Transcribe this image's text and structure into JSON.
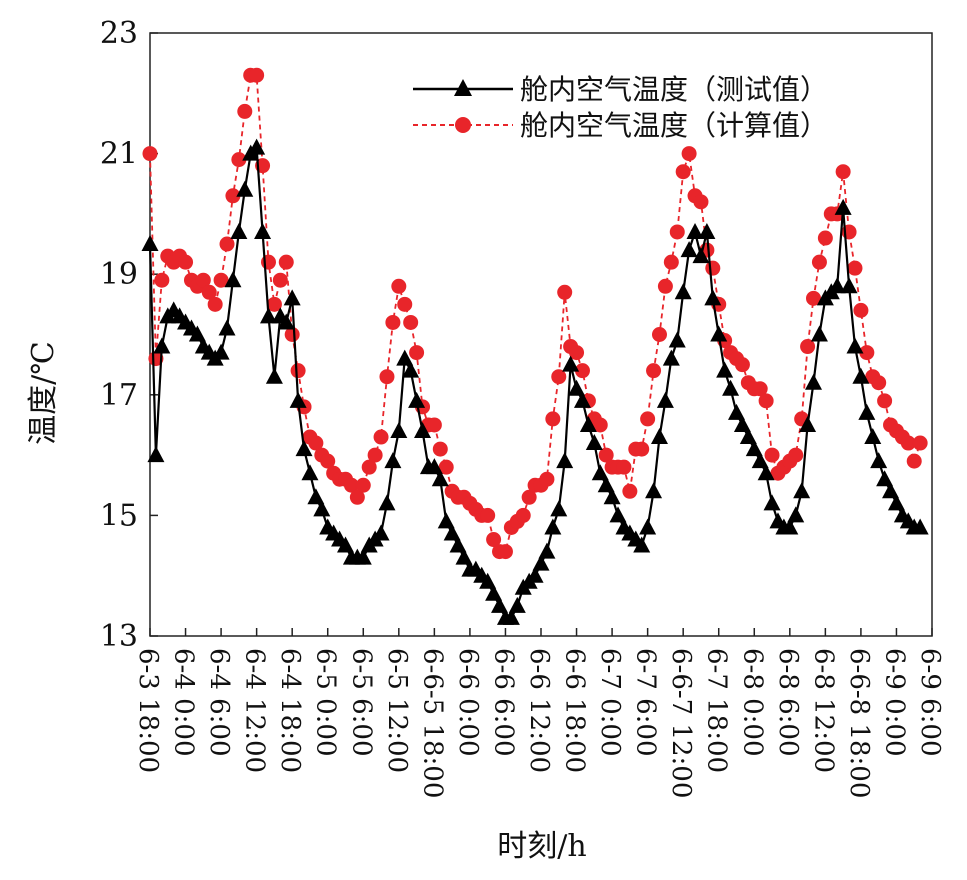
{
  "chart_data": {
    "type": "line",
    "xlabel": "时刻/h",
    "ylabel": "温度/℃",
    "ylim": [
      13,
      23
    ],
    "yticks": [
      13,
      15,
      17,
      19,
      21,
      23
    ],
    "x_range": [
      0,
      132
    ],
    "x_ticks": [
      {
        "x": 0,
        "label": "6-3 18:00"
      },
      {
        "x": 6,
        "label": "6-4 0:00"
      },
      {
        "x": 12,
        "label": "6-4 6:00"
      },
      {
        "x": 18,
        "label": "6-4 12:00"
      },
      {
        "x": 24,
        "label": "6-4 18:00"
      },
      {
        "x": 30,
        "label": "6-5 0:00"
      },
      {
        "x": 36,
        "label": "6-5 6:00"
      },
      {
        "x": 42,
        "label": "6-5 12:00"
      },
      {
        "x": 48,
        "label": "6-6-5 18:00"
      },
      {
        "x": 54,
        "label": "6-6 0:00"
      },
      {
        "x": 60,
        "label": "6-6 6:00"
      },
      {
        "x": 66,
        "label": "6-6 12:00"
      },
      {
        "x": 72,
        "label": "6-6 18:00"
      },
      {
        "x": 78,
        "label": "6-7 0:00"
      },
      {
        "x": 84,
        "label": "6-7 6:00"
      },
      {
        "x": 90,
        "label": "6-6-7 12:00"
      },
      {
        "x": 96,
        "label": "6-7 18:00"
      },
      {
        "x": 102,
        "label": "6-8 0:00"
      },
      {
        "x": 108,
        "label": "6-8 6:00"
      },
      {
        "x": 114,
        "label": "6-8 12:00"
      },
      {
        "x": 120,
        "label": "6-6-8 18:00"
      },
      {
        "x": 126,
        "label": "6-9 0:00"
      },
      {
        "x": 132,
        "label": "6-9 6:00"
      }
    ],
    "legend_position": "top-right",
    "grid": false,
    "series": [
      {
        "name": "舱内空气温度（测试值）",
        "color": "#000000",
        "marker": "triangle",
        "line": "solid",
        "values": [
          [
            0,
            19.5
          ],
          [
            1,
            16.0
          ],
          [
            2,
            17.8
          ],
          [
            3,
            18.3
          ],
          [
            4,
            18.4
          ],
          [
            5,
            18.3
          ],
          [
            6,
            18.2
          ],
          [
            7,
            18.1
          ],
          [
            8,
            18.0
          ],
          [
            9,
            17.8
          ],
          [
            10,
            17.7
          ],
          [
            11,
            17.6
          ],
          [
            12,
            17.7
          ],
          [
            13,
            18.1
          ],
          [
            14,
            18.9
          ],
          [
            15,
            19.7
          ],
          [
            16,
            20.4
          ],
          [
            17,
            21.0
          ],
          [
            18,
            21.1
          ],
          [
            19,
            19.7
          ],
          [
            20,
            18.3
          ],
          [
            21,
            17.3
          ],
          [
            22,
            18.3
          ],
          [
            23,
            18.2
          ],
          [
            24,
            18.6
          ],
          [
            25,
            16.9
          ],
          [
            26,
            16.1
          ],
          [
            27,
            15.7
          ],
          [
            28,
            15.3
          ],
          [
            29,
            15.1
          ],
          [
            30,
            14.8
          ],
          [
            31,
            14.7
          ],
          [
            32,
            14.6
          ],
          [
            33,
            14.5
          ],
          [
            34,
            14.3
          ],
          [
            35,
            14.3
          ],
          [
            36,
            14.3
          ],
          [
            37,
            14.5
          ],
          [
            38,
            14.6
          ],
          [
            39,
            14.7
          ],
          [
            40,
            15.2
          ],
          [
            41,
            15.9
          ],
          [
            42,
            16.4
          ],
          [
            43,
            17.6
          ],
          [
            44,
            17.4
          ],
          [
            45,
            16.9
          ],
          [
            46,
            16.4
          ],
          [
            47,
            15.8
          ],
          [
            48,
            15.8
          ],
          [
            49,
            15.6
          ],
          [
            50,
            14.9
          ],
          [
            51,
            14.7
          ],
          [
            52,
            14.5
          ],
          [
            53,
            14.3
          ],
          [
            54,
            14.1
          ],
          [
            55,
            14.1
          ],
          [
            56,
            14.0
          ],
          [
            57,
            13.9
          ],
          [
            58,
            13.7
          ],
          [
            59,
            13.5
          ],
          [
            60,
            13.3
          ],
          [
            61,
            13.3
          ],
          [
            62,
            13.5
          ],
          [
            63,
            13.8
          ],
          [
            64,
            13.9
          ],
          [
            65,
            14.0
          ],
          [
            66,
            14.2
          ],
          [
            67,
            14.4
          ],
          [
            68,
            14.8
          ],
          [
            69,
            15.1
          ],
          [
            70,
            15.9
          ],
          [
            71,
            17.5
          ],
          [
            72,
            17.1
          ],
          [
            73,
            16.9
          ],
          [
            74,
            16.5
          ],
          [
            75,
            16.2
          ],
          [
            76,
            15.7
          ],
          [
            77,
            15.5
          ],
          [
            78,
            15.3
          ],
          [
            79,
            15.0
          ],
          [
            80,
            14.8
          ],
          [
            81,
            14.7
          ],
          [
            82,
            14.6
          ],
          [
            83,
            14.5
          ],
          [
            84,
            14.8
          ],
          [
            85,
            15.4
          ],
          [
            86,
            16.3
          ],
          [
            87,
            16.9
          ],
          [
            88,
            17.6
          ],
          [
            89,
            17.9
          ],
          [
            90,
            18.7
          ],
          [
            91,
            19.4
          ],
          [
            92,
            19.7
          ],
          [
            93,
            19.3
          ],
          [
            94,
            19.7
          ],
          [
            95,
            18.6
          ],
          [
            96,
            18.0
          ],
          [
            97,
            17.4
          ],
          [
            98,
            17.1
          ],
          [
            99,
            16.7
          ],
          [
            100,
            16.5
          ],
          [
            101,
            16.3
          ],
          [
            102,
            16.1
          ],
          [
            103,
            15.9
          ],
          [
            104,
            15.7
          ],
          [
            105,
            15.2
          ],
          [
            106,
            14.9
          ],
          [
            107,
            14.8
          ],
          [
            108,
            14.8
          ],
          [
            109,
            15.0
          ],
          [
            110,
            15.4
          ],
          [
            111,
            16.5
          ],
          [
            112,
            17.2
          ],
          [
            113,
            18.0
          ],
          [
            114,
            18.6
          ],
          [
            115,
            18.7
          ],
          [
            116,
            18.8
          ],
          [
            117,
            20.1
          ],
          [
            118,
            18.8
          ],
          [
            119,
            17.8
          ],
          [
            120,
            17.3
          ],
          [
            121,
            16.7
          ],
          [
            122,
            16.3
          ],
          [
            123,
            15.9
          ],
          [
            124,
            15.6
          ],
          [
            125,
            15.4
          ],
          [
            126,
            15.2
          ],
          [
            127,
            15.0
          ],
          [
            128,
            14.9
          ],
          [
            129,
            14.8
          ],
          [
            130,
            14.8
          ]
        ]
      },
      {
        "name": "舱内空气温度（计算值）",
        "color": "#e8252a",
        "marker": "circle",
        "line": "dashed",
        "values": [
          [
            0,
            21.0
          ],
          [
            1,
            17.6
          ],
          [
            2,
            18.9
          ],
          [
            3,
            19.3
          ],
          [
            4,
            19.2
          ],
          [
            5,
            19.3
          ],
          [
            6,
            19.2
          ],
          [
            7,
            18.9
          ],
          [
            8,
            18.8
          ],
          [
            9,
            18.9
          ],
          [
            10,
            18.7
          ],
          [
            11,
            18.5
          ],
          [
            12,
            18.9
          ],
          [
            13,
            19.5
          ],
          [
            14,
            20.3
          ],
          [
            15,
            20.9
          ],
          [
            16,
            21.7
          ],
          [
            17,
            22.3
          ],
          [
            18,
            22.3
          ],
          [
            19,
            20.8
          ],
          [
            20,
            19.2
          ],
          [
            21,
            18.5
          ],
          [
            22,
            18.9
          ],
          [
            23,
            19.2
          ],
          [
            24,
            18.0
          ],
          [
            25,
            17.4
          ],
          [
            26,
            16.8
          ],
          [
            27,
            16.3
          ],
          [
            28,
            16.2
          ],
          [
            29,
            16.0
          ],
          [
            30,
            15.9
          ],
          [
            31,
            15.7
          ],
          [
            32,
            15.6
          ],
          [
            33,
            15.6
          ],
          [
            34,
            15.5
          ],
          [
            35,
            15.3
          ],
          [
            36,
            15.5
          ],
          [
            37,
            15.8
          ],
          [
            38,
            16.0
          ],
          [
            39,
            16.3
          ],
          [
            40,
            17.3
          ],
          [
            41,
            18.2
          ],
          [
            42,
            18.8
          ],
          [
            43,
            18.5
          ],
          [
            44,
            18.2
          ],
          [
            45,
            17.7
          ],
          [
            46,
            16.8
          ],
          [
            47,
            16.5
          ],
          [
            48,
            16.5
          ],
          [
            49,
            16.1
          ],
          [
            50,
            15.8
          ],
          [
            51,
            15.4
          ],
          [
            52,
            15.3
          ],
          [
            53,
            15.3
          ],
          [
            54,
            15.2
          ],
          [
            55,
            15.1
          ],
          [
            56,
            15.0
          ],
          [
            57,
            15.0
          ],
          [
            58,
            14.6
          ],
          [
            59,
            14.4
          ],
          [
            60,
            14.4
          ],
          [
            61,
            14.8
          ],
          [
            62,
            14.9
          ],
          [
            63,
            15.0
          ],
          [
            64,
            15.3
          ],
          [
            65,
            15.5
          ],
          [
            66,
            15.5
          ],
          [
            67,
            15.6
          ],
          [
            68,
            16.6
          ],
          [
            69,
            17.3
          ],
          [
            70,
            18.7
          ],
          [
            71,
            17.8
          ],
          [
            72,
            17.7
          ],
          [
            73,
            17.4
          ],
          [
            74,
            16.9
          ],
          [
            75,
            16.6
          ],
          [
            76,
            16.5
          ],
          [
            77,
            16.0
          ],
          [
            78,
            15.8
          ],
          [
            79,
            15.8
          ],
          [
            80,
            15.8
          ],
          [
            81,
            15.4
          ],
          [
            82,
            16.1
          ],
          [
            83,
            16.1
          ],
          [
            84,
            16.6
          ],
          [
            85,
            17.4
          ],
          [
            86,
            18.0
          ],
          [
            87,
            18.8
          ],
          [
            88,
            19.2
          ],
          [
            89,
            19.7
          ],
          [
            90,
            20.7
          ],
          [
            91,
            21.0
          ],
          [
            92,
            20.3
          ],
          [
            93,
            20.2
          ],
          [
            94,
            19.4
          ],
          [
            95,
            19.1
          ],
          [
            96,
            18.5
          ],
          [
            97,
            17.9
          ],
          [
            98,
            17.7
          ],
          [
            99,
            17.6
          ],
          [
            100,
            17.5
          ],
          [
            101,
            17.2
          ],
          [
            102,
            17.1
          ],
          [
            103,
            17.1
          ],
          [
            104,
            16.9
          ],
          [
            105,
            16.0
          ],
          [
            106,
            15.7
          ],
          [
            107,
            15.8
          ],
          [
            108,
            15.9
          ],
          [
            109,
            16.0
          ],
          [
            110,
            16.6
          ],
          [
            111,
            17.8
          ],
          [
            112,
            18.6
          ],
          [
            113,
            19.2
          ],
          [
            114,
            19.6
          ],
          [
            115,
            20.0
          ],
          [
            116,
            20.0
          ],
          [
            117,
            20.7
          ],
          [
            118,
            19.7
          ],
          [
            119,
            19.1
          ],
          [
            120,
            18.4
          ],
          [
            121,
            17.7
          ],
          [
            122,
            17.3
          ],
          [
            123,
            17.2
          ],
          [
            124,
            16.9
          ],
          [
            125,
            16.5
          ],
          [
            126,
            16.4
          ],
          [
            127,
            16.3
          ],
          [
            128,
            16.2
          ],
          [
            129,
            15.9
          ],
          [
            130,
            16.2
          ]
        ]
      }
    ]
  }
}
